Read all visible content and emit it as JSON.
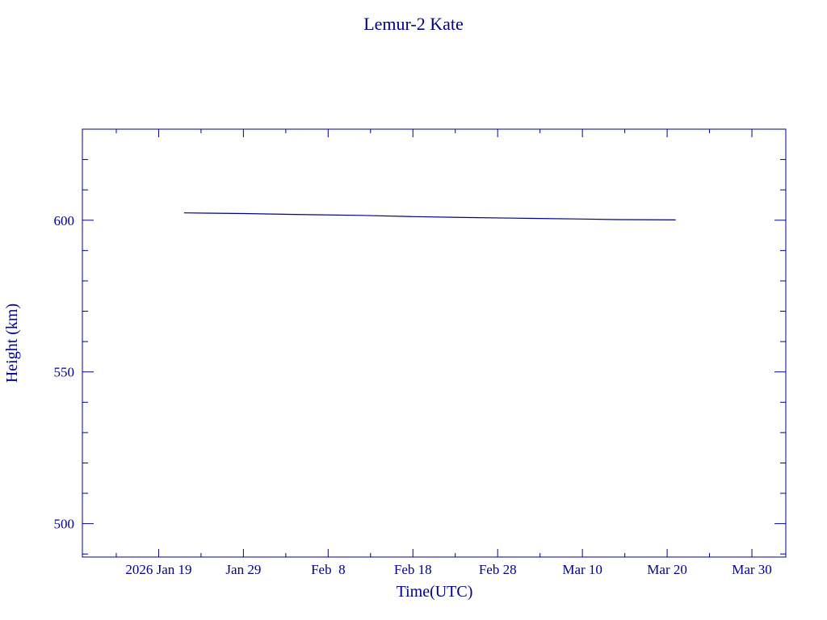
{
  "chart_data": {
    "type": "line",
    "title": "Lemur-2 Kate",
    "xlabel": "Time(UTC)",
    "ylabel": "Height (km)",
    "x_type": "date",
    "xlim": [
      "2026-01-10",
      "2026-04-03"
    ],
    "ylim": [
      489,
      630
    ],
    "x_tick_labels": [
      {
        "date": "2026-01-19",
        "label": "2026 Jan 19"
      },
      {
        "date": "2026-01-29",
        "label": "Jan 29"
      },
      {
        "date": "2026-02-08",
        "label": "Feb  8"
      },
      {
        "date": "2026-02-18",
        "label": "Feb 18"
      },
      {
        "date": "2026-02-28",
        "label": "Feb 28"
      },
      {
        "date": "2026-03-10",
        "label": "Mar 10"
      },
      {
        "date": "2026-03-20",
        "label": "Mar 20"
      },
      {
        "date": "2026-03-30",
        "label": "Mar 30"
      }
    ],
    "y_tick_labels": [
      500,
      550,
      600
    ],
    "grid": false,
    "series": [
      {
        "color": "#00008b",
        "points": [
          {
            "x": "2026-01-22",
            "y": 602.4
          },
          {
            "x": "2026-01-29",
            "y": 602.2
          },
          {
            "x": "2026-02-04",
            "y": 601.9
          },
          {
            "x": "2026-02-12",
            "y": 601.6
          },
          {
            "x": "2026-02-18",
            "y": 601.2
          },
          {
            "x": "2026-02-24",
            "y": 600.9
          },
          {
            "x": "2026-03-04",
            "y": 600.6
          },
          {
            "x": "2026-03-10",
            "y": 600.4
          },
          {
            "x": "2026-03-14",
            "y": 600.2
          },
          {
            "x": "2026-03-21",
            "y": 600.1
          }
        ]
      }
    ]
  }
}
